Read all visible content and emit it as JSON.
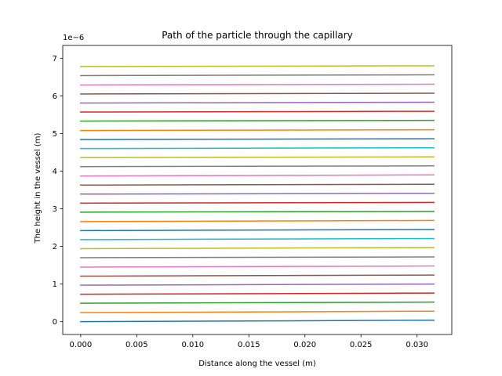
{
  "chart_data": {
    "type": "line",
    "title": "Path of the particle through the capillary",
    "xlabel": "Distance along the vessel (m)",
    "ylabel": "The height in the vessel (m)",
    "y_offset_text": "1e−6",
    "y_multiplier": 1e-06,
    "xlim": [
      -0.0016,
      0.0331
    ],
    "ylim": [
      -0.34,
      7.34
    ],
    "x_ticks": [
      0.0,
      0.005,
      0.01,
      0.015,
      0.02,
      0.025,
      0.03
    ],
    "x_tick_labels": [
      "0.000",
      "0.005",
      "0.010",
      "0.015",
      "0.020",
      "0.025",
      "0.030"
    ],
    "y_ticks": [
      0,
      1,
      2,
      3,
      4,
      5,
      6,
      7
    ],
    "y_tick_labels": [
      "0",
      "1",
      "2",
      "3",
      "4",
      "5",
      "6",
      "7"
    ],
    "grid": false,
    "colors": [
      "#1f77b4",
      "#ff7f0e",
      "#2ca02c",
      "#d62728",
      "#9467bd",
      "#8c564b",
      "#e377c2",
      "#7f7f7f",
      "#bcbd22",
      "#17becf"
    ],
    "series": [
      {
        "x": [
          0.0,
          0.0315
        ],
        "y": [
          0.0,
          0.04
        ],
        "color": "#1f77b4"
      },
      {
        "x": [
          0.0,
          0.0315
        ],
        "y": [
          0.24,
          0.28
        ],
        "color": "#ff7f0e"
      },
      {
        "x": [
          0.0,
          0.0315
        ],
        "y": [
          0.49,
          0.52
        ],
        "color": "#2ca02c"
      },
      {
        "x": [
          0.0,
          0.0315
        ],
        "y": [
          0.73,
          0.76
        ],
        "color": "#d62728"
      },
      {
        "x": [
          0.0,
          0.0315
        ],
        "y": [
          0.97,
          1.0
        ],
        "color": "#9467bd"
      },
      {
        "x": [
          0.0,
          0.0315
        ],
        "y": [
          1.21,
          1.24
        ],
        "color": "#8c564b"
      },
      {
        "x": [
          0.0,
          0.0315
        ],
        "y": [
          1.45,
          1.48
        ],
        "color": "#e377c2"
      },
      {
        "x": [
          0.0,
          0.0315
        ],
        "y": [
          1.7,
          1.72
        ],
        "color": "#7f7f7f"
      },
      {
        "x": [
          0.0,
          0.0315
        ],
        "y": [
          1.94,
          1.97
        ],
        "color": "#bcbd22"
      },
      {
        "x": [
          0.0,
          0.0315
        ],
        "y": [
          2.18,
          2.21
        ],
        "color": "#17becf"
      },
      {
        "x": [
          0.0,
          0.0315
        ],
        "y": [
          2.42,
          2.45
        ],
        "color": "#1f77b4"
      },
      {
        "x": [
          0.0,
          0.0315
        ],
        "y": [
          2.66,
          2.69
        ],
        "color": "#ff7f0e"
      },
      {
        "x": [
          0.0,
          0.0315
        ],
        "y": [
          2.91,
          2.93
        ],
        "color": "#2ca02c"
      },
      {
        "x": [
          0.0,
          0.0315
        ],
        "y": [
          3.15,
          3.17
        ],
        "color": "#d62728"
      },
      {
        "x": [
          0.0,
          0.0315
        ],
        "y": [
          3.39,
          3.41
        ],
        "color": "#9467bd"
      },
      {
        "x": [
          0.0,
          0.0315
        ],
        "y": [
          3.63,
          3.65
        ],
        "color": "#8c564b"
      },
      {
        "x": [
          0.0,
          0.0315
        ],
        "y": [
          3.87,
          3.9
        ],
        "color": "#e377c2"
      },
      {
        "x": [
          0.0,
          0.0315
        ],
        "y": [
          4.12,
          4.14
        ],
        "color": "#7f7f7f"
      },
      {
        "x": [
          0.0,
          0.0315
        ],
        "y": [
          4.36,
          4.38
        ],
        "color": "#bcbd22"
      },
      {
        "x": [
          0.0,
          0.0315
        ],
        "y": [
          4.6,
          4.62
        ],
        "color": "#17becf"
      },
      {
        "x": [
          0.0,
          0.0315
        ],
        "y": [
          4.84,
          4.86
        ],
        "color": "#1f77b4"
      },
      {
        "x": [
          0.0,
          0.0315
        ],
        "y": [
          5.08,
          5.1
        ],
        "color": "#ff7f0e"
      },
      {
        "x": [
          0.0,
          0.0315
        ],
        "y": [
          5.33,
          5.35
        ],
        "color": "#2ca02c"
      },
      {
        "x": [
          0.0,
          0.0315
        ],
        "y": [
          5.57,
          5.59
        ],
        "color": "#d62728"
      },
      {
        "x": [
          0.0,
          0.0315
        ],
        "y": [
          5.81,
          5.83
        ],
        "color": "#9467bd"
      },
      {
        "x": [
          0.0,
          0.0315
        ],
        "y": [
          6.05,
          6.07
        ],
        "color": "#8c564b"
      },
      {
        "x": [
          0.0,
          0.0315
        ],
        "y": [
          6.29,
          6.31
        ],
        "color": "#e377c2"
      },
      {
        "x": [
          0.0,
          0.0315
        ],
        "y": [
          6.54,
          6.56
        ],
        "color": "#7f7f7f"
      },
      {
        "x": [
          0.0,
          0.0315
        ],
        "y": [
          6.78,
          6.8
        ],
        "color": "#bcbd22"
      }
    ]
  }
}
